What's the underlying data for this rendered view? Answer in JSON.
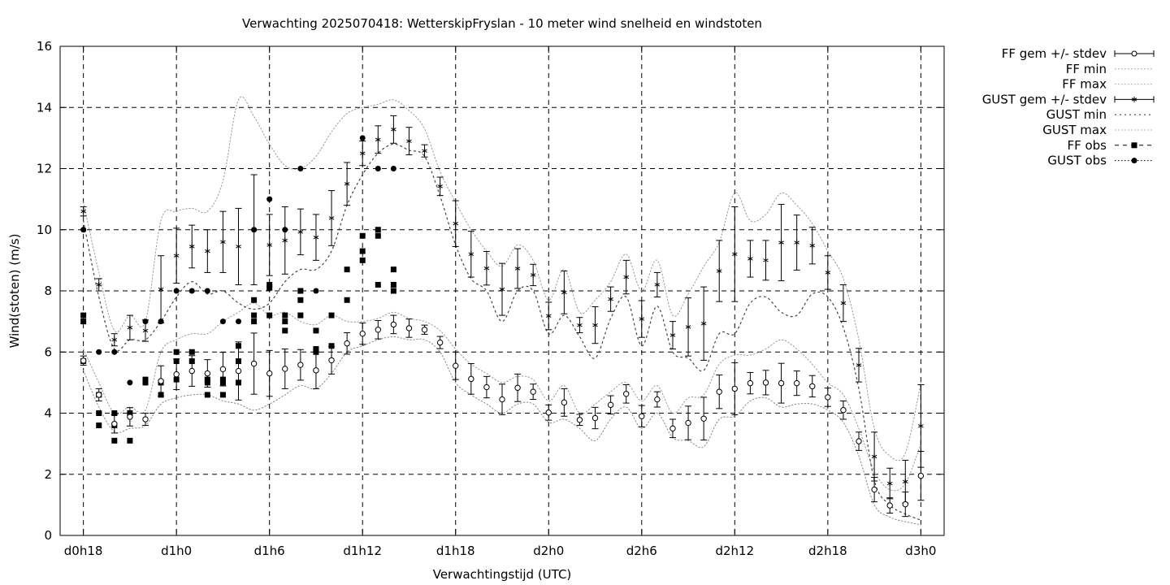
{
  "chart_data": {
    "type": "line",
    "title": "Verwachting 2025070418: WetterskipFryslan - 10 meter wind snelheid en windstoten",
    "xlabel": "Verwachtingstijd (UTC)",
    "ylabel": "Wind(stoten) (m/s)",
    "ylim": [
      0,
      16
    ],
    "xlim": [
      -1.5,
      55.5
    ],
    "y_ticks": [
      "0",
      "2",
      "4",
      "6",
      "8",
      "10",
      "12",
      "14",
      "16"
    ],
    "y_tick_values": [
      0,
      2,
      4,
      6,
      8,
      10,
      12,
      14,
      16
    ],
    "x_tick_values": [
      0,
      6,
      12,
      18,
      24,
      30,
      36,
      42,
      48,
      54
    ],
    "x_tick_labels": [
      "d0h18",
      "d1h0",
      "d1h6",
      "d1h12",
      "d1h18",
      "d2h0",
      "d2h6",
      "d2h12",
      "d2h18",
      "d3h0"
    ],
    "x_unit": "hours after d0h18",
    "grid": true,
    "legend_position": "outside-right",
    "legend": [
      "FF gem +/- stdev",
      "FF min",
      "FF max",
      "GUST gem +/- stdev",
      "GUST min",
      "GUST max",
      "FF obs",
      "GUST obs"
    ],
    "series": {
      "ff_mean": {
        "name": "FF gem +/- stdev",
        "x": [
          0,
          1,
          2,
          3,
          4,
          5,
          6,
          7,
          8,
          9,
          10,
          11,
          12,
          13,
          14,
          15,
          16,
          17,
          18,
          19,
          20,
          21,
          22,
          23,
          24,
          25,
          26,
          27,
          28,
          29,
          30,
          31,
          32,
          33,
          34,
          35,
          36,
          37,
          38,
          39,
          40,
          41,
          42,
          43,
          44,
          45,
          46,
          47,
          48,
          49,
          50,
          51,
          52,
          53,
          54
        ],
        "y": [
          5.72,
          4.6,
          3.65,
          3.88,
          3.8,
          5.05,
          5.27,
          5.38,
          5.3,
          5.44,
          5.38,
          5.62,
          5.3,
          5.45,
          5.58,
          5.4,
          5.73,
          6.28,
          6.6,
          6.73,
          6.9,
          6.78,
          6.73,
          6.31,
          5.55,
          5.12,
          4.85,
          4.45,
          4.83,
          4.7,
          4.02,
          4.35,
          3.78,
          3.84,
          4.27,
          4.63,
          3.9,
          4.45,
          3.5,
          3.68,
          3.82,
          4.7,
          4.8,
          4.98,
          5.0,
          4.98,
          4.98,
          4.88,
          4.52,
          4.1,
          3.08,
          1.5,
          0.98,
          1.02,
          1.95
        ],
        "stdev": [
          0.15,
          0.2,
          0.3,
          0.3,
          0.2,
          0.5,
          0.5,
          0.5,
          0.45,
          0.55,
          0.95,
          1.0,
          0.75,
          0.65,
          0.5,
          0.6,
          0.45,
          0.35,
          0.35,
          0.3,
          0.3,
          0.3,
          0.15,
          0.2,
          0.45,
          0.5,
          0.35,
          0.5,
          0.45,
          0.25,
          0.25,
          0.45,
          0.18,
          0.35,
          0.3,
          0.3,
          0.35,
          0.25,
          0.3,
          0.55,
          0.7,
          0.55,
          0.85,
          0.35,
          0.4,
          0.65,
          0.4,
          0.35,
          0.3,
          0.3,
          0.3,
          0.4,
          0.25,
          0.4,
          0.8
        ]
      },
      "ff_min": {
        "name": "FF min",
        "x": [
          0,
          1,
          2,
          3,
          4,
          5,
          6,
          7,
          8,
          9,
          10,
          11,
          12,
          13,
          14,
          15,
          16,
          17,
          18,
          19,
          20,
          21,
          22,
          23,
          24,
          25,
          26,
          27,
          28,
          29,
          30,
          31,
          32,
          33,
          34,
          35,
          36,
          37,
          38,
          39,
          40,
          41,
          42,
          43,
          44,
          45,
          46,
          47,
          48,
          49,
          50,
          51,
          52,
          53,
          54
        ],
        "y": [
          5.4,
          4.2,
          3.4,
          3.5,
          3.6,
          4.3,
          4.5,
          4.6,
          4.6,
          4.4,
          4.3,
          4.1,
          4.3,
          4.6,
          4.9,
          4.8,
          5.3,
          6.0,
          6.2,
          6.4,
          6.5,
          6.4,
          6.4,
          6.0,
          5.0,
          4.6,
          4.3,
          4.0,
          4.3,
          4.3,
          3.7,
          3.8,
          3.5,
          3.1,
          3.8,
          4.2,
          3.5,
          4.0,
          3.2,
          3.1,
          2.9,
          3.8,
          3.9,
          4.4,
          4.5,
          4.2,
          4.3,
          4.3,
          4.1,
          3.7,
          2.6,
          1.0,
          0.6,
          0.45,
          0.35
        ]
      },
      "ff_max": {
        "name": "FF max",
        "x": [
          0,
          1,
          2,
          3,
          4,
          5,
          6,
          7,
          8,
          9,
          10,
          11,
          12,
          13,
          14,
          15,
          16,
          17,
          18,
          19,
          20,
          21,
          22,
          23,
          24,
          25,
          26,
          27,
          28,
          29,
          30,
          31,
          32,
          33,
          34,
          35,
          36,
          37,
          38,
          39,
          40,
          41,
          42,
          43,
          44,
          45,
          46,
          47,
          48,
          49,
          50,
          51,
          52,
          53,
          54
        ],
        "y": [
          6.1,
          5.0,
          4.0,
          4.2,
          4.1,
          6.0,
          6.4,
          6.6,
          6.6,
          7.0,
          7.3,
          7.6,
          7.2,
          7.3,
          7.0,
          6.9,
          7.2,
          7.0,
          7.0,
          7.1,
          7.3,
          7.1,
          7.0,
          6.7,
          6.1,
          5.6,
          5.3,
          5.0,
          5.2,
          5.1,
          4.4,
          4.9,
          4.0,
          4.3,
          4.7,
          5.0,
          4.4,
          4.9,
          4.0,
          4.5,
          4.6,
          5.6,
          5.9,
          5.9,
          6.1,
          6.4,
          6.1,
          5.6,
          5.0,
          4.6,
          3.5,
          2.1,
          1.5,
          1.7,
          3.0
        ]
      },
      "gust_mean": {
        "name": "GUST gem +/- stdev",
        "x": [
          0,
          1,
          2,
          3,
          4,
          5,
          6,
          7,
          8,
          9,
          10,
          11,
          12,
          13,
          14,
          15,
          16,
          17,
          18,
          19,
          20,
          21,
          22,
          23,
          24,
          25,
          26,
          27,
          28,
          29,
          30,
          31,
          32,
          33,
          34,
          35,
          36,
          37,
          38,
          39,
          40,
          41,
          42,
          43,
          44,
          45,
          46,
          47,
          48,
          49,
          50,
          51,
          52,
          53,
          54
        ],
        "y": [
          10.6,
          8.2,
          6.4,
          6.8,
          6.7,
          8.05,
          9.15,
          9.45,
          9.3,
          9.6,
          9.45,
          10.0,
          9.5,
          9.65,
          9.93,
          9.75,
          10.38,
          11.5,
          12.5,
          12.95,
          13.28,
          12.9,
          12.58,
          11.42,
          10.2,
          9.2,
          8.74,
          8.05,
          8.73,
          8.52,
          7.18,
          7.95,
          6.88,
          6.88,
          7.73,
          8.45,
          7.08,
          8.2,
          6.55,
          6.82,
          6.93,
          8.65,
          9.2,
          9.05,
          9.0,
          9.58,
          9.58,
          9.48,
          8.6,
          7.6,
          5.57,
          2.58,
          1.7,
          1.76,
          3.58
        ]
      },
      "gust_min": {
        "name": "GUST min",
        "x": [
          0,
          1,
          2,
          3,
          4,
          5,
          6,
          7,
          8,
          9,
          10,
          11,
          12,
          13,
          14,
          15,
          16,
          17,
          18,
          19,
          20,
          21,
          22,
          23,
          24,
          25,
          26,
          27,
          28,
          29,
          30,
          31,
          32,
          33,
          34,
          35,
          36,
          37,
          38,
          39,
          40,
          41,
          42,
          43,
          44,
          45,
          46,
          47,
          48,
          49,
          50,
          51,
          52,
          53,
          54
        ],
        "y": [
          10.3,
          7.8,
          6.1,
          6.4,
          6.4,
          7.0,
          7.8,
          8.3,
          7.9,
          8.0,
          7.6,
          7.4,
          7.6,
          8.3,
          8.7,
          8.7,
          9.3,
          10.8,
          11.8,
          12.5,
          12.8,
          12.6,
          12.4,
          11.1,
          9.5,
          8.4,
          8.0,
          7.0,
          8.0,
          8.0,
          6.6,
          7.2,
          6.5,
          5.8,
          7.1,
          7.8,
          6.2,
          7.5,
          6.0,
          5.8,
          5.4,
          6.6,
          6.6,
          7.6,
          7.8,
          7.3,
          7.2,
          7.9,
          7.8,
          6.8,
          4.8,
          1.8,
          1.0,
          0.7,
          0.5
        ]
      },
      "gust_max": {
        "name": "GUST max",
        "x": [
          0,
          1,
          2,
          3,
          4,
          5,
          6,
          7,
          8,
          9,
          10,
          11,
          12,
          13,
          14,
          15,
          16,
          17,
          18,
          19,
          20,
          21,
          22,
          23,
          24,
          25,
          26,
          27,
          28,
          29,
          30,
          31,
          32,
          33,
          34,
          35,
          36,
          37,
          38,
          39,
          40,
          41,
          42,
          43,
          44,
          45,
          46,
          47,
          48,
          49,
          50,
          51,
          52,
          53,
          54
        ],
        "y": [
          10.9,
          8.6,
          6.7,
          7.2,
          7.0,
          10.3,
          10.6,
          10.7,
          10.6,
          11.6,
          14.25,
          13.7,
          12.8,
          12.1,
          12.0,
          12.4,
          13.2,
          13.8,
          14.0,
          14.1,
          14.25,
          13.9,
          13.3,
          11.9,
          10.9,
          10.0,
          9.3,
          8.8,
          9.5,
          9.0,
          7.7,
          8.7,
          7.3,
          7.7,
          8.3,
          9.2,
          8.0,
          9.0,
          7.2,
          7.9,
          8.8,
          9.6,
          11.2,
          10.3,
          10.5,
          11.2,
          10.8,
          10.2,
          9.3,
          8.4,
          6.4,
          3.5,
          2.6,
          2.7,
          5.0
        ]
      },
      "ff_obs": {
        "name": "FF obs",
        "points": [
          [
            0,
            7.2
          ],
          [
            0,
            7.0
          ],
          [
            0,
            5.7
          ],
          [
            1,
            4.6
          ],
          [
            1,
            4.0
          ],
          [
            1,
            3.6
          ],
          [
            2,
            4.0
          ],
          [
            2,
            3.6
          ],
          [
            2,
            3.1
          ],
          [
            3,
            4.0
          ],
          [
            3,
            3.1
          ],
          [
            4,
            5.1
          ],
          [
            4,
            5.0
          ],
          [
            5,
            5.0
          ],
          [
            5,
            4.6
          ],
          [
            6,
            6.0
          ],
          [
            6,
            5.7
          ],
          [
            6,
            5.1
          ],
          [
            7,
            6.0
          ],
          [
            7,
            5.7
          ],
          [
            8,
            5.1
          ],
          [
            8,
            5.0
          ],
          [
            8,
            4.6
          ],
          [
            9,
            5.1
          ],
          [
            9,
            5.0
          ],
          [
            9,
            4.6
          ],
          [
            10,
            6.2
          ],
          [
            10,
            5.7
          ],
          [
            10,
            5.0
          ],
          [
            11,
            7.7
          ],
          [
            11,
            7.2
          ],
          [
            11,
            7.0
          ],
          [
            12,
            8.2
          ],
          [
            12,
            8.1
          ],
          [
            12,
            7.2
          ],
          [
            13,
            7.2
          ],
          [
            13,
            7.0
          ],
          [
            13,
            6.7
          ],
          [
            14,
            8.0
          ],
          [
            14,
            7.7
          ],
          [
            14,
            7.2
          ],
          [
            15,
            6.7
          ],
          [
            15,
            6.1
          ],
          [
            15,
            6.0
          ],
          [
            16,
            7.2
          ],
          [
            16,
            6.2
          ],
          [
            17,
            8.7
          ],
          [
            17,
            7.7
          ],
          [
            18,
            9.8
          ],
          [
            18,
            9.3
          ],
          [
            18,
            9.0
          ],
          [
            19,
            10.0
          ],
          [
            19,
            9.8
          ],
          [
            19,
            8.2
          ],
          [
            20,
            8.7
          ],
          [
            20,
            8.2
          ],
          [
            20,
            8.0
          ]
        ]
      },
      "gust_obs": {
        "name": "GUST obs",
        "points": [
          [
            0,
            10.0
          ],
          [
            1,
            6.0
          ],
          [
            2,
            6.0
          ],
          [
            3,
            5.0
          ],
          [
            4,
            7.0
          ],
          [
            4,
            5.0
          ],
          [
            5,
            7.0
          ],
          [
            6,
            8.0
          ],
          [
            7,
            8.0
          ],
          [
            8,
            8.0
          ],
          [
            9,
            7.0
          ],
          [
            10,
            7.0
          ],
          [
            11,
            10.0
          ],
          [
            12,
            11.0
          ],
          [
            13,
            10.0
          ],
          [
            14,
            12.0
          ],
          [
            15,
            8.0
          ],
          [
            18,
            13.0
          ],
          [
            19,
            12.0
          ],
          [
            20,
            12.0
          ]
        ]
      }
    }
  }
}
